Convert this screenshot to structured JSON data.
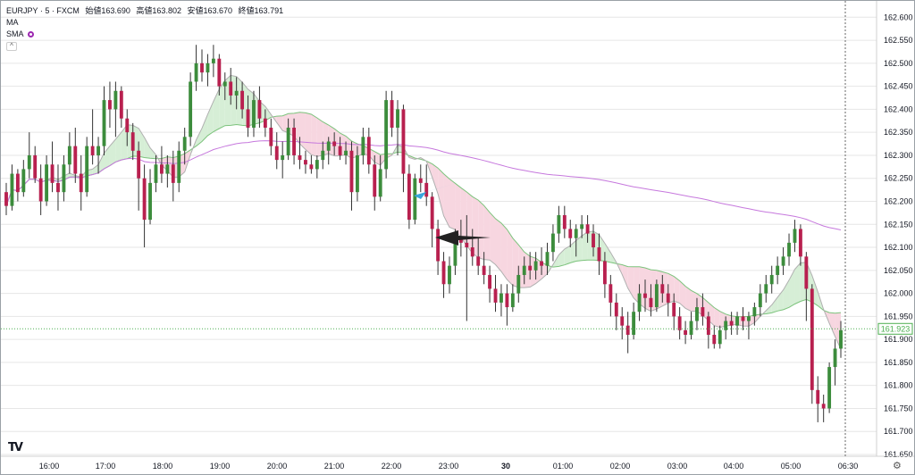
{
  "legend": {
    "symbol": "EURJPY · 5 · FXCM",
    "open": "始値163.690",
    "high": "高値163.802",
    "low": "安値163.670",
    "close": "終値163.791",
    "ma_label": "MA",
    "sma_label": "SMA",
    "collapse_glyph": "^"
  },
  "colors": {
    "up": "#3c8c3c",
    "down": "#b8204f",
    "grid": "#e6e6e6",
    "price_line": "#4caf50",
    "cloud_up": "#d6eed6",
    "cloud_down": "#f7d6e0",
    "sma_long": "#c678dd",
    "arrow_blue": "#3aa6dd",
    "arrow_black": "#222222"
  },
  "icons": {
    "logo": "tradingview-logo-icon",
    "settings": "settings-icon"
  },
  "chart_data": {
    "type": "candlestick",
    "symbol": "EURJPY",
    "ylim": [
      161.65,
      162.62
    ],
    "y_ticks": [
      "162.600",
      "162.550",
      "162.500",
      "162.450",
      "162.400",
      "162.350",
      "162.300",
      "162.250",
      "162.200",
      "162.150",
      "162.100",
      "162.050",
      "162.000",
      "161.950",
      "161.900",
      "161.850",
      "161.800",
      "161.750",
      "161.700",
      "161.650"
    ],
    "x_ticks": [
      "16:00",
      "17:00",
      "18:00",
      "19:00",
      "20:00",
      "21:00",
      "22:00",
      "23:00",
      "30",
      "01:00",
      "02:00",
      "03:00",
      "04:00",
      "05:00",
      "06:30"
    ],
    "current_price_label": "161.923",
    "current_price": 161.923,
    "candles": [
      [
        162.22,
        162.24,
        162.17,
        162.19
      ],
      [
        162.19,
        162.28,
        162.18,
        162.26
      ],
      [
        162.26,
        162.27,
        162.2,
        162.22
      ],
      [
        162.22,
        162.29,
        162.21,
        162.27
      ],
      [
        162.27,
        162.35,
        162.25,
        162.3
      ],
      [
        162.3,
        162.32,
        162.24,
        162.25
      ],
      [
        162.25,
        162.28,
        162.17,
        162.2
      ],
      [
        162.2,
        162.3,
        162.19,
        162.28
      ],
      [
        162.28,
        162.33,
        162.22,
        162.24
      ],
      [
        162.24,
        162.28,
        162.18,
        162.22
      ],
      [
        162.22,
        162.3,
        162.2,
        162.28
      ],
      [
        162.28,
        162.35,
        162.26,
        162.32
      ],
      [
        162.32,
        162.36,
        162.24,
        162.26
      ],
      [
        162.26,
        162.3,
        162.18,
        162.22
      ],
      [
        162.22,
        162.34,
        162.21,
        162.32
      ],
      [
        162.32,
        162.4,
        162.28,
        162.3
      ],
      [
        162.3,
        162.34,
        162.26,
        162.32
      ],
      [
        162.32,
        162.45,
        162.3,
        162.42
      ],
      [
        162.42,
        162.46,
        162.36,
        162.4
      ],
      [
        162.4,
        162.46,
        162.34,
        162.44
      ],
      [
        162.44,
        162.45,
        162.36,
        162.38
      ],
      [
        162.38,
        162.4,
        162.32,
        162.35
      ],
      [
        162.35,
        162.37,
        162.29,
        162.31
      ],
      [
        162.31,
        162.33,
        162.18,
        162.25
      ],
      [
        162.25,
        162.28,
        162.1,
        162.16
      ],
      [
        162.16,
        162.27,
        162.15,
        162.24
      ],
      [
        162.24,
        162.3,
        162.22,
        162.28
      ],
      [
        162.28,
        162.32,
        162.24,
        162.26
      ],
      [
        162.26,
        162.3,
        162.23,
        162.28
      ],
      [
        162.28,
        162.31,
        162.2,
        162.24
      ],
      [
        162.24,
        162.33,
        162.22,
        162.31
      ],
      [
        162.31,
        162.36,
        162.28,
        162.34
      ],
      [
        162.34,
        162.48,
        162.32,
        162.46
      ],
      [
        162.46,
        162.54,
        162.44,
        162.5
      ],
      [
        162.5,
        162.53,
        162.46,
        162.48
      ],
      [
        162.48,
        162.52,
        162.45,
        162.5
      ],
      [
        162.5,
        162.54,
        162.47,
        162.51
      ],
      [
        162.51,
        162.52,
        162.43,
        162.45
      ],
      [
        162.45,
        162.48,
        162.42,
        162.46
      ],
      [
        162.46,
        162.49,
        162.41,
        162.43
      ],
      [
        162.43,
        162.47,
        162.4,
        162.44
      ],
      [
        162.44,
        162.46,
        162.38,
        162.4
      ],
      [
        162.4,
        162.43,
        162.34,
        162.36
      ],
      [
        162.36,
        162.44,
        162.34,
        162.42
      ],
      [
        162.42,
        162.45,
        162.36,
        162.38
      ],
      [
        162.38,
        162.4,
        162.34,
        162.36
      ],
      [
        162.36,
        162.38,
        162.3,
        162.32
      ],
      [
        162.32,
        162.35,
        162.27,
        162.29
      ],
      [
        162.29,
        162.33,
        162.25,
        162.3
      ],
      [
        162.3,
        162.38,
        162.29,
        162.36
      ],
      [
        162.36,
        162.38,
        162.28,
        162.3
      ],
      [
        162.3,
        162.34,
        162.27,
        162.29
      ],
      [
        162.29,
        162.31,
        162.26,
        162.28
      ],
      [
        162.28,
        162.3,
        162.26,
        162.27
      ],
      [
        162.27,
        162.3,
        162.25,
        162.29
      ],
      [
        162.29,
        162.33,
        162.27,
        162.31
      ],
      [
        162.31,
        162.34,
        162.28,
        162.33
      ],
      [
        162.33,
        162.35,
        162.3,
        162.32
      ],
      [
        162.32,
        162.34,
        162.29,
        162.3
      ],
      [
        162.3,
        162.33,
        162.28,
        162.31
      ],
      [
        162.31,
        162.33,
        162.18,
        162.22
      ],
      [
        162.22,
        162.32,
        162.2,
        162.3
      ],
      [
        162.3,
        162.36,
        162.28,
        162.34
      ],
      [
        162.34,
        162.36,
        162.26,
        162.28
      ],
      [
        162.28,
        162.3,
        162.18,
        162.21
      ],
      [
        162.21,
        162.3,
        162.2,
        162.27
      ],
      [
        162.27,
        162.44,
        162.25,
        162.42
      ],
      [
        162.42,
        162.44,
        162.34,
        162.36
      ],
      [
        162.36,
        162.42,
        162.3,
        162.4
      ],
      [
        162.4,
        162.41,
        162.22,
        162.26
      ],
      [
        162.26,
        162.28,
        162.14,
        162.16
      ],
      [
        162.16,
        162.26,
        162.15,
        162.25
      ],
      [
        162.25,
        162.28,
        162.22,
        162.24
      ],
      [
        162.24,
        162.28,
        162.19,
        162.21
      ],
      [
        162.21,
        162.22,
        162.1,
        162.14
      ],
      [
        162.14,
        162.16,
        162.04,
        162.07
      ],
      [
        162.07,
        162.09,
        161.99,
        162.02
      ],
      [
        162.02,
        162.08,
        162.0,
        162.06
      ],
      [
        162.06,
        162.14,
        162.04,
        162.12
      ],
      [
        162.12,
        162.16,
        162.08,
        162.11
      ],
      [
        162.11,
        162.17,
        161.94,
        162.1
      ],
      [
        162.1,
        162.14,
        162.06,
        162.08
      ],
      [
        162.08,
        162.12,
        162.04,
        162.06
      ],
      [
        162.06,
        162.09,
        162.02,
        162.04
      ],
      [
        162.04,
        162.06,
        161.98,
        162.01
      ],
      [
        162.01,
        162.04,
        161.96,
        161.98
      ],
      [
        161.98,
        162.02,
        161.95,
        162.0
      ],
      [
        162.0,
        162.02,
        161.93,
        161.97
      ],
      [
        161.97,
        162.02,
        161.96,
        162.0
      ],
      [
        162.0,
        162.06,
        161.98,
        162.04
      ],
      [
        162.04,
        162.08,
        162.02,
        162.06
      ],
      [
        162.06,
        162.09,
        162.03,
        162.05
      ],
      [
        162.05,
        162.09,
        162.03,
        162.07
      ],
      [
        162.07,
        162.1,
        162.04,
        162.06
      ],
      [
        162.06,
        162.11,
        162.04,
        162.09
      ],
      [
        162.09,
        162.15,
        162.07,
        162.13
      ],
      [
        162.13,
        162.19,
        162.11,
        162.17
      ],
      [
        162.17,
        162.19,
        162.12,
        162.14
      ],
      [
        162.14,
        162.16,
        162.1,
        162.12
      ],
      [
        162.12,
        162.15,
        162.08,
        162.14
      ],
      [
        162.14,
        162.17,
        162.12,
        162.15
      ],
      [
        162.15,
        162.17,
        162.11,
        162.13
      ],
      [
        162.13,
        162.15,
        162.08,
        162.1
      ],
      [
        162.1,
        162.13,
        162.04,
        162.07
      ],
      [
        162.07,
        162.09,
        161.99,
        162.02
      ],
      [
        162.02,
        162.04,
        161.95,
        161.98
      ],
      [
        161.98,
        162.0,
        161.92,
        161.95
      ],
      [
        161.95,
        161.97,
        161.9,
        161.93
      ],
      [
        161.93,
        161.96,
        161.87,
        161.91
      ],
      [
        161.91,
        161.98,
        161.9,
        161.96
      ],
      [
        161.96,
        162.02,
        161.94,
        162.0
      ],
      [
        162.0,
        162.03,
        161.96,
        161.99
      ],
      [
        161.99,
        162.02,
        161.95,
        161.97
      ],
      [
        161.97,
        162.03,
        161.96,
        162.02
      ],
      [
        162.02,
        162.04,
        161.98,
        162.0
      ],
      [
        162.0,
        162.02,
        161.95,
        161.98
      ],
      [
        161.98,
        162.0,
        161.92,
        161.95
      ],
      [
        161.95,
        161.97,
        161.9,
        161.92
      ],
      [
        161.92,
        161.94,
        161.89,
        161.91
      ],
      [
        161.91,
        161.96,
        161.9,
        161.94
      ],
      [
        161.94,
        161.99,
        161.92,
        161.97
      ],
      [
        161.97,
        162.0,
        161.93,
        161.95
      ],
      [
        161.95,
        161.96,
        161.88,
        161.91
      ],
      [
        161.91,
        161.93,
        161.88,
        161.89
      ],
      [
        161.89,
        161.93,
        161.88,
        161.92
      ],
      [
        161.92,
        161.95,
        161.9,
        161.94
      ],
      [
        161.94,
        161.96,
        161.91,
        161.93
      ],
      [
        161.93,
        161.96,
        161.91,
        161.95
      ],
      [
        161.95,
        161.97,
        161.92,
        161.94
      ],
      [
        161.94,
        161.96,
        161.9,
        161.95
      ],
      [
        161.95,
        161.98,
        161.93,
        161.97
      ],
      [
        161.97,
        162.02,
        161.95,
        162.0
      ],
      [
        162.0,
        162.04,
        161.98,
        162.02
      ],
      [
        162.02,
        162.06,
        162.0,
        162.04
      ],
      [
        162.04,
        162.08,
        162.02,
        162.06
      ],
      [
        162.06,
        162.1,
        162.04,
        162.08
      ],
      [
        162.08,
        162.13,
        162.06,
        162.11
      ],
      [
        162.11,
        162.16,
        162.09,
        162.14
      ],
      [
        162.14,
        162.15,
        162.06,
        162.08
      ],
      [
        162.08,
        162.09,
        161.94,
        162.01
      ],
      [
        162.01,
        162.02,
        161.76,
        161.79
      ],
      [
        161.79,
        161.82,
        161.72,
        161.76
      ],
      [
        161.76,
        161.78,
        161.72,
        161.75
      ],
      [
        161.75,
        161.85,
        161.74,
        161.84
      ],
      [
        161.84,
        161.9,
        161.8,
        161.88
      ],
      [
        161.88,
        161.94,
        161.86,
        161.92
      ]
    ],
    "annotations": [
      "blue-arrow",
      "black-arrow"
    ]
  }
}
